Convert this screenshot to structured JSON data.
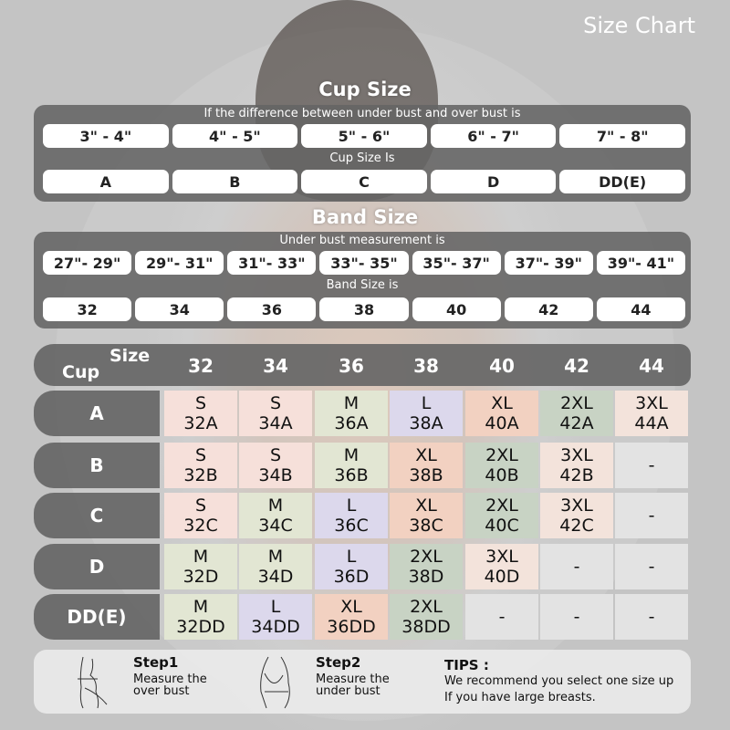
{
  "title": "Size Chart",
  "cup_section": {
    "heading": "Cup Size",
    "instruction": "If the  difference between under bust and over bust is",
    "differences": [
      "3\" -  4\"",
      "4\" -  5\"",
      "5\" -  6\"",
      "6\" -  7\"",
      "7\" -  8\""
    ],
    "result_label": "Cup Size Is",
    "cups": [
      "A",
      "B",
      "C",
      "D",
      "DD(E)"
    ]
  },
  "band_section": {
    "heading": "Band Size",
    "instruction": "Under bust measurement is",
    "measurements": [
      "27\"- 29\"",
      "29\"- 31\"",
      "31\"- 33\"",
      "33\"- 35\"",
      "35\"- 37\"",
      "37\"- 39\"",
      "39\"- 41\""
    ],
    "result_label": "Band Size is",
    "bands": [
      "32",
      "34",
      "36",
      "38",
      "40",
      "42",
      "44"
    ]
  },
  "table": {
    "corner_size": "Size",
    "corner_cup": "Cup",
    "columns": [
      "32",
      "34",
      "36",
      "38",
      "40",
      "42",
      "44"
    ],
    "colors": {
      "S": "#f6e0da",
      "M": "#e2e6d3",
      "L": "#dcd8ec",
      "XL": "#f2d1c1",
      "2XL": "#c8d3c4",
      "3XL": "#f3e3db",
      "-": "#e3e3e3"
    },
    "rows": [
      {
        "cup": "A",
        "cells": [
          [
            "S",
            "32A"
          ],
          [
            "S",
            "34A"
          ],
          [
            "M",
            "36A"
          ],
          [
            "L",
            "38A"
          ],
          [
            "XL",
            "40A"
          ],
          [
            "2XL",
            "42A"
          ],
          [
            "3XL",
            "44A"
          ]
        ]
      },
      {
        "cup": "B",
        "cells": [
          [
            "S",
            "32B"
          ],
          [
            "S",
            "34B"
          ],
          [
            "M",
            "36B"
          ],
          [
            "XL",
            "38B"
          ],
          [
            "2XL",
            "40B"
          ],
          [
            "3XL",
            "42B"
          ],
          [
            "-",
            ""
          ]
        ]
      },
      {
        "cup": "C",
        "cells": [
          [
            "S",
            "32C"
          ],
          [
            "M",
            "34C"
          ],
          [
            "L",
            "36C"
          ],
          [
            "XL",
            "38C"
          ],
          [
            "2XL",
            "40C"
          ],
          [
            "3XL",
            "42C"
          ],
          [
            "-",
            ""
          ]
        ]
      },
      {
        "cup": "D",
        "cells": [
          [
            "M",
            "32D"
          ],
          [
            "M",
            "34D"
          ],
          [
            "L",
            "36D"
          ],
          [
            "2XL",
            "38D"
          ],
          [
            "3XL",
            "40D"
          ],
          [
            "-",
            ""
          ],
          [
            "-",
            ""
          ]
        ]
      },
      {
        "cup": "DD(E)",
        "cells": [
          [
            "M",
            "32DD"
          ],
          [
            "L",
            "34DD"
          ],
          [
            "XL",
            "36DD"
          ],
          [
            "2XL",
            "38DD"
          ],
          [
            "-",
            ""
          ],
          [
            "-",
            ""
          ],
          [
            "-",
            ""
          ]
        ]
      }
    ]
  },
  "steps": [
    {
      "title": "Step1",
      "text1": "Measure the",
      "text2": "over bust"
    },
    {
      "title": "Step2",
      "text1": "Measure the",
      "text2": "under bust"
    }
  ],
  "tips": {
    "title": "TIPS :",
    "line1": "We recommend you select one size up",
    "line2": "If you have large breasts."
  }
}
